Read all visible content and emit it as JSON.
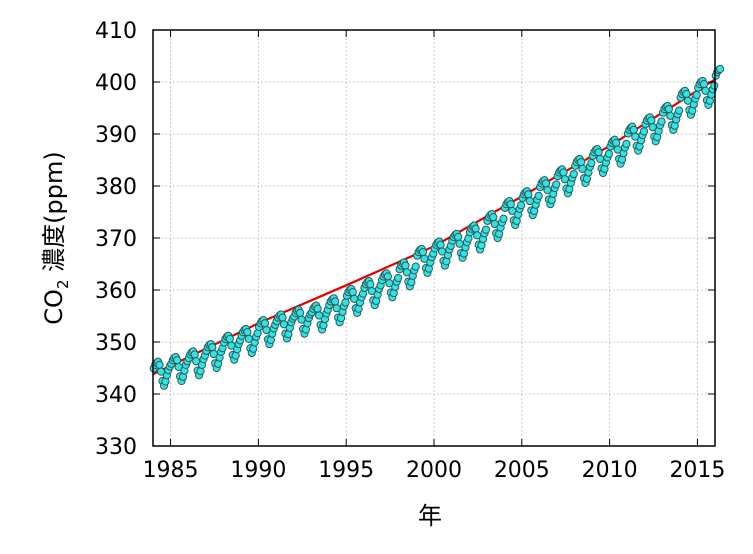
{
  "chart_data": {
    "type": "scatter",
    "title": "",
    "xlabel": "年",
    "ylabel": {
      "prefix": "CO",
      "subscript": "2",
      "suffix": " 濃度(ppm)"
    },
    "xlim": [
      1984.0,
      2016.0
    ],
    "ylim": [
      330,
      410
    ],
    "xticks": [
      1985,
      1990,
      1995,
      2000,
      2005,
      2010,
      2015
    ],
    "yticks": [
      330,
      340,
      350,
      360,
      370,
      380,
      390,
      400,
      410
    ],
    "grid": true,
    "legend": "none",
    "colors": {
      "marker_fill": "#33e3e3",
      "marker_stroke": "#2a5a5a",
      "trend_line": "#e00000",
      "grid": "#c8c8c8",
      "axis": "#000000"
    },
    "series": [
      {
        "kind": "monthly-observations",
        "marker": "circle",
        "start_year": 1984,
        "values": [
          344.9,
          345.6,
          346.0,
          346.2,
          345.6,
          344.3,
          342.5,
          341.6,
          342.4,
          343.6,
          344.6,
          345.3,
          345.8,
          346.5,
          346.9,
          347.1,
          346.5,
          345.2,
          343.4,
          342.5,
          343.3,
          344.5,
          345.6,
          346.3,
          346.9,
          347.6,
          348.0,
          348.2,
          347.6,
          346.3,
          344.5,
          343.6,
          344.4,
          345.6,
          346.7,
          347.4,
          348.3,
          349.0,
          349.4,
          349.6,
          349.0,
          347.7,
          345.9,
          345.0,
          345.8,
          347.0,
          348.1,
          348.8,
          349.9,
          350.6,
          351.0,
          351.2,
          350.6,
          349.3,
          347.5,
          346.6,
          347.4,
          348.6,
          349.6,
          350.3,
          351.2,
          351.9,
          352.3,
          352.5,
          351.9,
          350.6,
          348.8,
          347.9,
          348.7,
          349.9,
          351.0,
          351.7,
          352.9,
          353.6,
          354.0,
          354.2,
          353.6,
          352.3,
          350.5,
          349.6,
          350.4,
          351.6,
          352.6,
          353.3,
          354.0,
          354.7,
          355.1,
          355.3,
          354.7,
          353.4,
          351.6,
          350.7,
          351.5,
          352.7,
          353.8,
          354.5,
          354.9,
          355.6,
          356.0,
          356.2,
          355.6,
          354.3,
          352.5,
          351.6,
          352.4,
          353.6,
          354.6,
          355.3,
          355.7,
          356.4,
          356.8,
          357.0,
          356.4,
          355.1,
          353.3,
          352.4,
          353.2,
          354.4,
          355.5,
          356.2,
          357.1,
          357.8,
          358.2,
          358.4,
          357.8,
          356.5,
          354.7,
          353.8,
          354.6,
          355.8,
          356.9,
          357.6,
          358.9,
          359.6,
          360.0,
          360.2,
          359.6,
          358.3,
          356.5,
          355.6,
          356.4,
          357.6,
          358.6,
          359.3,
          360.4,
          361.1,
          361.5,
          361.7,
          361.1,
          359.8,
          358.0,
          357.1,
          357.9,
          359.1,
          360.2,
          360.9,
          361.9,
          362.6,
          363.0,
          363.2,
          362.6,
          361.3,
          359.5,
          358.6,
          359.4,
          360.6,
          361.6,
          362.3,
          364.0,
          364.7,
          365.1,
          365.3,
          364.7,
          363.4,
          361.6,
          360.7,
          361.5,
          362.7,
          363.8,
          364.5,
          366.6,
          367.3,
          367.7,
          367.9,
          367.3,
          366.0,
          364.2,
          363.3,
          364.1,
          365.3,
          366.3,
          367.0,
          368.0,
          368.7,
          369.1,
          369.3,
          368.7,
          367.4,
          365.6,
          364.7,
          365.5,
          366.7,
          367.8,
          368.5,
          369.5,
          370.2,
          370.6,
          370.8,
          370.2,
          368.9,
          367.1,
          366.2,
          367.0,
          368.2,
          369.2,
          369.9,
          371.1,
          371.8,
          372.2,
          372.4,
          371.8,
          370.5,
          368.7,
          367.8,
          368.6,
          369.8,
          370.9,
          371.6,
          373.3,
          374.0,
          374.4,
          374.6,
          374.0,
          372.7,
          370.9,
          370.0,
          370.8,
          372.0,
          373.0,
          373.7,
          375.8,
          376.5,
          376.9,
          377.1,
          376.5,
          375.2,
          373.4,
          372.5,
          373.3,
          374.5,
          375.6,
          376.3,
          377.7,
          378.4,
          378.8,
          379.0,
          378.4,
          377.1,
          375.3,
          374.4,
          375.2,
          376.4,
          377.4,
          378.1,
          379.8,
          380.5,
          380.9,
          381.1,
          380.5,
          379.2,
          377.4,
          376.5,
          377.3,
          378.5,
          379.6,
          380.3,
          381.9,
          382.6,
          383.0,
          383.2,
          382.6,
          381.3,
          379.5,
          378.6,
          379.4,
          380.6,
          381.6,
          382.3,
          383.9,
          384.6,
          385.0,
          385.2,
          384.6,
          383.3,
          381.5,
          380.6,
          381.4,
          382.6,
          383.7,
          384.4,
          385.8,
          386.5,
          386.9,
          387.1,
          386.5,
          385.2,
          383.4,
          382.5,
          383.3,
          384.5,
          385.5,
          386.2,
          387.6,
          388.3,
          388.7,
          388.9,
          388.3,
          387.0,
          385.2,
          384.3,
          385.1,
          386.3,
          387.4,
          388.1,
          390.1,
          390.8,
          391.2,
          391.4,
          390.8,
          389.5,
          387.7,
          386.8,
          387.6,
          388.8,
          389.8,
          390.5,
          391.9,
          392.6,
          393.0,
          393.2,
          392.6,
          391.3,
          389.5,
          388.6,
          389.4,
          390.6,
          391.7,
          392.4,
          394.1,
          394.8,
          395.2,
          395.4,
          394.8,
          393.5,
          391.7,
          390.8,
          391.6,
          392.8,
          393.8,
          394.5,
          397.0,
          397.7,
          398.1,
          398.3,
          397.7,
          396.4,
          394.6,
          393.7,
          394.5,
          395.7,
          396.8,
          397.5,
          398.9,
          399.6,
          400.0,
          400.2,
          399.6,
          398.3,
          396.5,
          395.6,
          396.4,
          397.6,
          398.6,
          399.3,
          401.2,
          401.9,
          402.3,
          402.5
        ]
      },
      {
        "kind": "trend",
        "style": "line",
        "x": [
          1984.0,
          1990.0,
          1995.0,
          2000.0,
          2005.0,
          2010.0,
          2016.0
        ],
        "values": [
          343.8,
          353.6,
          360.9,
          368.4,
          378.0,
          387.7,
          400.5
        ]
      }
    ]
  }
}
